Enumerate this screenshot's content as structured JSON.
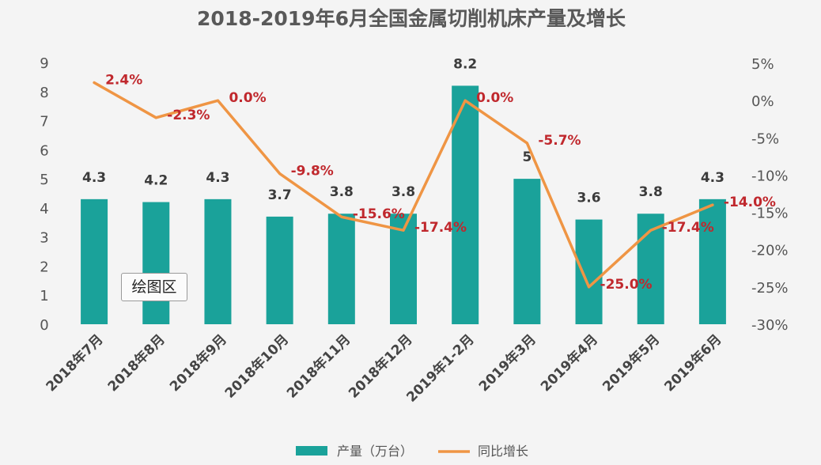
{
  "chart_data": {
    "type": "bar+line",
    "title": "2018-2019年6月全国金属切削机床产量及增长",
    "categories": [
      "2018年7月",
      "2018年8月",
      "2018年9月",
      "2018年10月",
      "2018年11月",
      "2018年12月",
      "2019年1-2月",
      "2019年3月",
      "2019年4月",
      "2019年5月",
      "2019年6月"
    ],
    "series": [
      {
        "name": "产量（万台）",
        "type": "bar",
        "axis": "left",
        "color": "#1aa29a",
        "values": [
          4.3,
          4.2,
          4.3,
          3.7,
          3.8,
          3.8,
          8.2,
          5,
          3.6,
          3.8,
          4.3
        ],
        "labels": [
          "4.3",
          "4.2",
          "4.3",
          "3.7",
          "3.8",
          "3.8",
          "8.2",
          "5",
          "3.6",
          "3.8",
          "4.3"
        ]
      },
      {
        "name": "同比增长",
        "type": "line",
        "axis": "right",
        "color": "#ef9544",
        "label_color": "#c0282d",
        "values": [
          2.4,
          -2.3,
          0.0,
          -9.8,
          -15.6,
          -17.4,
          0.0,
          -5.7,
          -25.0,
          -17.4,
          -14.0
        ],
        "labels": [
          "2.4%",
          "-2.3%",
          "0.0%",
          "-9.8%",
          "-15.6%",
          "-17.4%",
          "0.0%",
          "-5.7%",
          "-25.0%",
          "-17.4%",
          "-14.0%"
        ]
      }
    ],
    "y_left": {
      "min": 0,
      "max": 9,
      "ticks": [
        "0",
        "1",
        "2",
        "3",
        "4",
        "5",
        "6",
        "7",
        "8",
        "9"
      ]
    },
    "y_right": {
      "min": -30,
      "max": 5,
      "ticks": [
        "-30%",
        "-25%",
        "-20%",
        "-15%",
        "-10%",
        "-5%",
        "0%",
        "5%"
      ]
    },
    "grid": false,
    "legend_position": "bottom-center",
    "annotation": "绘图区"
  }
}
